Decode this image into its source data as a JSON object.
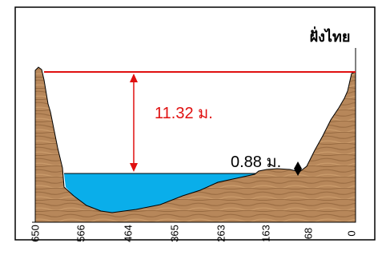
{
  "diagram": {
    "title": "ฝั่งไทย",
    "level_label": "11.32 ม.",
    "water_label": "0.88 ม.",
    "x_ticks": [
      "650",
      "566",
      "464",
      "365",
      "263",
      "163",
      "68",
      "0"
    ],
    "colors": {
      "level_line": "#e01010",
      "water": "#0aaeea",
      "ground": "#b7875a",
      "ground_dark": "#8a5f38",
      "outline": "#000000"
    }
  }
}
